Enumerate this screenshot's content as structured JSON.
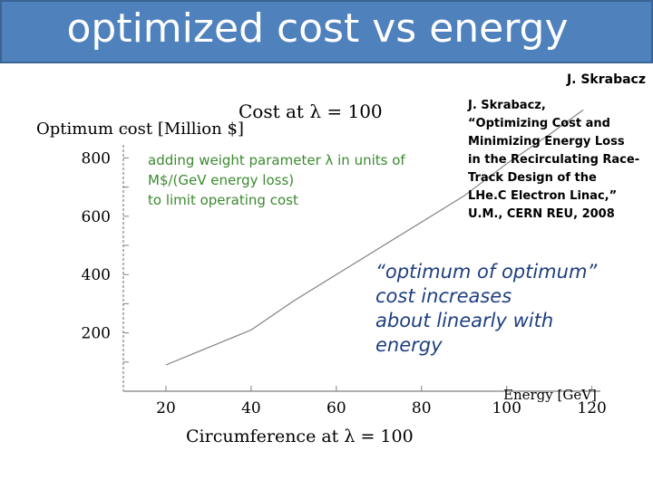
{
  "slide": {
    "title": "optimized cost vs energy",
    "author": "J. Skrabacz"
  },
  "reference": {
    "lines": [
      "J. Skrabacz,",
      "“Optimizing Cost and",
      "Minimizing Energy Loss",
      "in the Recirculating Race-",
      "Track Design of the",
      "LHe.C Electron Linac,”",
      "U.M., CERN REU, 2008"
    ]
  },
  "note": {
    "lines": [
      "adding weight parameter λ in units of",
      "M$/(GeV energy loss)",
      "to limit operating cost"
    ]
  },
  "comment": {
    "lines": [
      "“optimum of optimum”",
      "cost increases",
      "about linearly with",
      "energy"
    ]
  },
  "colors": {
    "title_bar": "#4f81bd",
    "note": "#3b8a2f",
    "comment": "#1f3f80"
  },
  "chart_data": {
    "type": "line",
    "title": "Cost at λ = 100",
    "ylabel": "Optimum cost [Million $]",
    "xlabel": "Energy [GeV]",
    "x2label": "Circumference at λ = 100",
    "xlim": [
      10,
      122
    ],
    "ylim": [
      0,
      1000
    ],
    "xticks": [
      "20",
      "40",
      "60",
      "80",
      "100",
      "120"
    ],
    "yticks": [
      "200",
      "400",
      "600",
      "800"
    ],
    "grid": false,
    "series": [
      {
        "x": [
          20,
          30,
          40,
          50,
          60,
          70,
          80,
          90,
          100,
          110,
          118
        ],
        "y": [
          90,
          150,
          210,
          310,
          400,
          490,
          580,
          670,
          780,
          880,
          965
        ]
      }
    ]
  }
}
